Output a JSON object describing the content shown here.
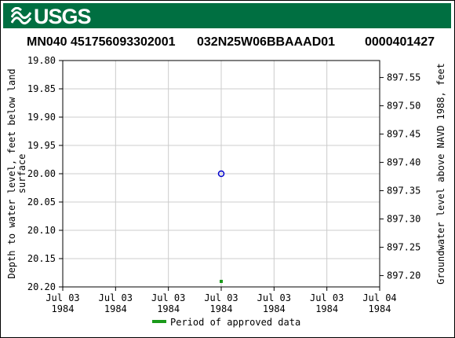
{
  "header": {
    "logo_text": "USGS"
  },
  "titles": {
    "site_number": "MN040 451756093302001",
    "local_id": "032N25W06BBAAAD01",
    "station_id": "0000401427"
  },
  "chart_data": {
    "type": "scatter",
    "ylabel_left": "Depth to water level, feet below land surface",
    "ylabel_left_lines": [
      "Depth to water level, feet below land",
      "surface"
    ],
    "ylabel_right": "Groundwater level above NAVD 1988, feet",
    "y_left": {
      "range": [
        19.8,
        20.2
      ],
      "inverted": true,
      "ticks": [
        "19.80",
        "19.85",
        "19.90",
        "19.95",
        "20.00",
        "20.05",
        "20.10",
        "20.15",
        "20.20"
      ]
    },
    "y_right": {
      "range": [
        897.58,
        897.18
      ],
      "ticks": [
        "897.55",
        "897.50",
        "897.45",
        "897.40",
        "897.35",
        "897.30",
        "897.25",
        "897.20"
      ]
    },
    "x": {
      "ticks": [
        [
          "Jul 03",
          "1984"
        ],
        [
          "Jul 03",
          "1984"
        ],
        [
          "Jul 03",
          "1984"
        ],
        [
          "Jul 03",
          "1984"
        ],
        [
          "Jul 03",
          "1984"
        ],
        [
          "Jul 03",
          "1984"
        ],
        [
          "Jul 04",
          "1984"
        ]
      ]
    },
    "grid": true,
    "points": [
      {
        "x_tick_index": 3,
        "depth": 20.0
      }
    ],
    "approved_period": {
      "x_tick_index": 3
    },
    "legend": {
      "label": "Period of approved data",
      "color": "#1a9a1a",
      "placement": "bottom-center"
    },
    "point_color": "#0000cc"
  }
}
